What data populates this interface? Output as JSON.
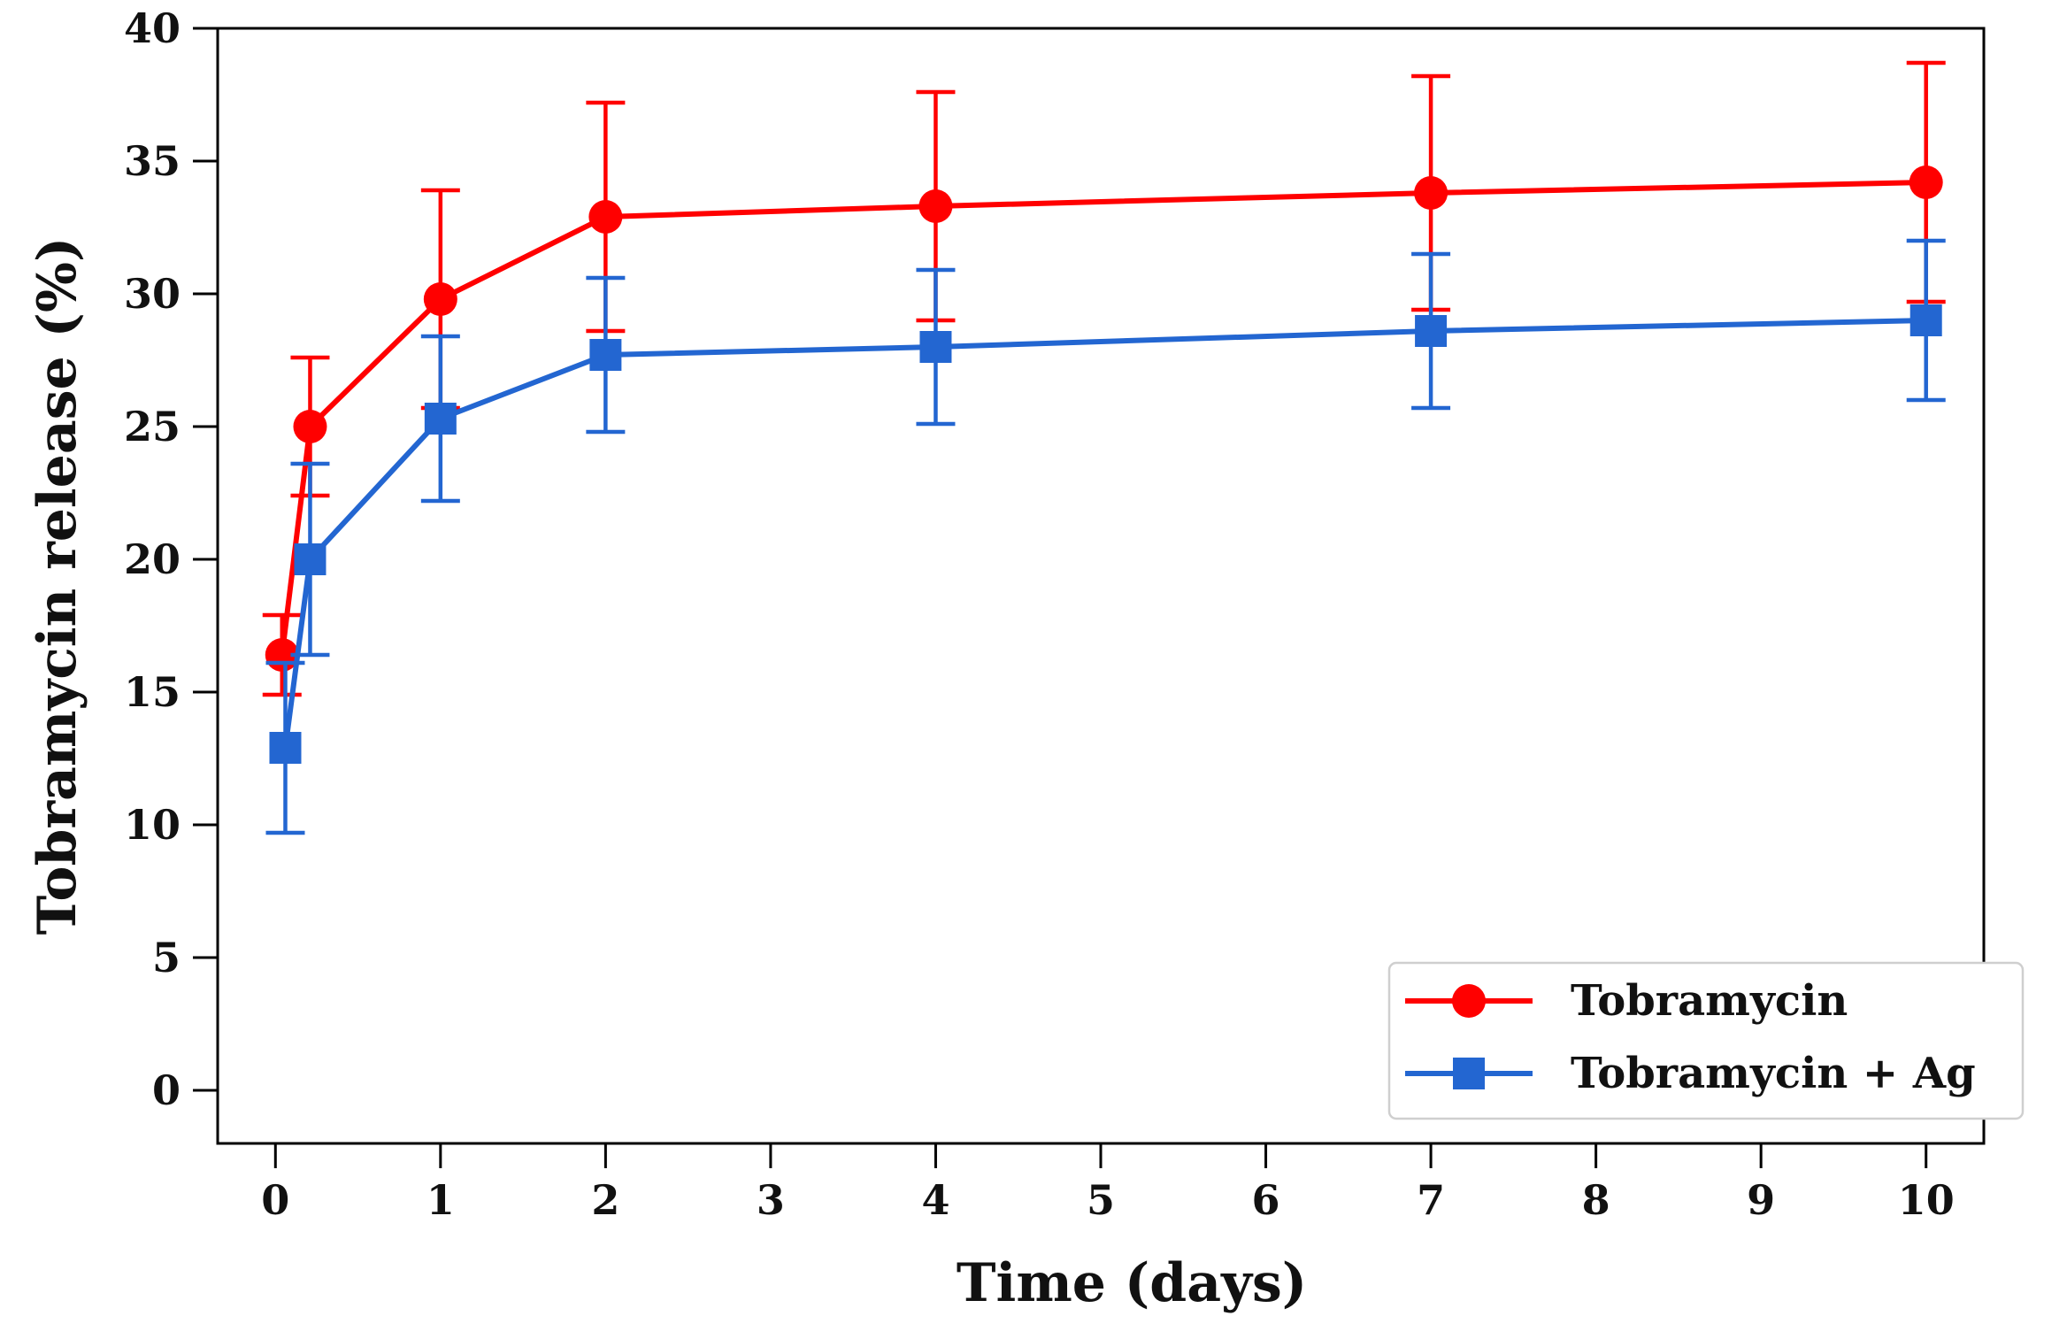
{
  "chart_data": {
    "type": "line",
    "title": "",
    "xlabel": "Time (days)",
    "ylabel": "Tobramycin release (%)",
    "xlim": [
      -0.35,
      10.35
    ],
    "ylim": [
      -2,
      40
    ],
    "xticks": [
      0,
      1,
      2,
      3,
      4,
      5,
      6,
      7,
      8,
      9,
      10
    ],
    "xtick_labels": [
      "0",
      "1",
      "2",
      "3",
      "4",
      "5",
      "6",
      "7",
      "8",
      "9",
      "10"
    ],
    "yticks": [
      0,
      5,
      10,
      15,
      20,
      25,
      30,
      35,
      40
    ],
    "ytick_labels": [
      "0",
      "5",
      "10",
      "15",
      "20",
      "25",
      "30",
      "35",
      "40"
    ],
    "grid": false,
    "legend_position": "bottom-right",
    "series": [
      {
        "name": "Tobramycin",
        "color": "#ff0000",
        "marker": "circle",
        "x": [
          0.04,
          0.21,
          1,
          2,
          4,
          7,
          10
        ],
        "y": [
          16.4,
          25.0,
          29.8,
          32.9,
          33.3,
          33.8,
          34.2
        ],
        "err": [
          1.5,
          2.6,
          4.1,
          4.3,
          4.3,
          4.4,
          4.5
        ]
      },
      {
        "name": "Tobramycin + Ag",
        "color": "#2366d1",
        "marker": "square",
        "x": [
          0.06,
          0.21,
          1,
          2,
          4,
          7,
          10
        ],
        "y": [
          12.9,
          20.0,
          25.3,
          27.7,
          28.0,
          28.6,
          29.0
        ],
        "err": [
          3.2,
          3.6,
          3.1,
          2.9,
          2.9,
          2.9,
          3.0
        ]
      }
    ]
  }
}
